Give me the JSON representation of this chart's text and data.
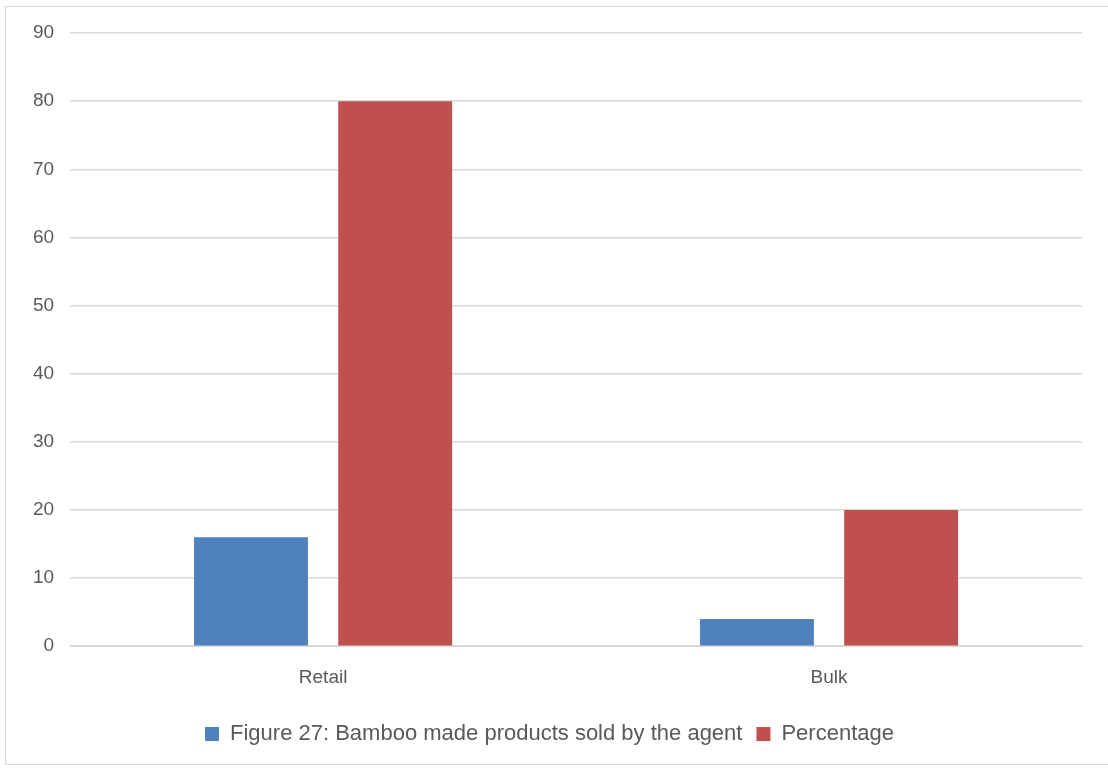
{
  "chart_data": {
    "type": "bar",
    "categories": [
      "Retail",
      "Bulk"
    ],
    "series": [
      {
        "name": "Figure 27: Bamboo made products sold by the agent",
        "color": "#4f81bd",
        "values": [
          16,
          4
        ]
      },
      {
        "name": "Percentage",
        "color": "#c0504d",
        "values": [
          80,
          20
        ]
      }
    ],
    "ylim": [
      0,
      90
    ],
    "yticks": [
      0,
      10,
      20,
      30,
      40,
      50,
      60,
      70,
      80,
      90
    ],
    "grid": "y",
    "legend": "bottom"
  }
}
